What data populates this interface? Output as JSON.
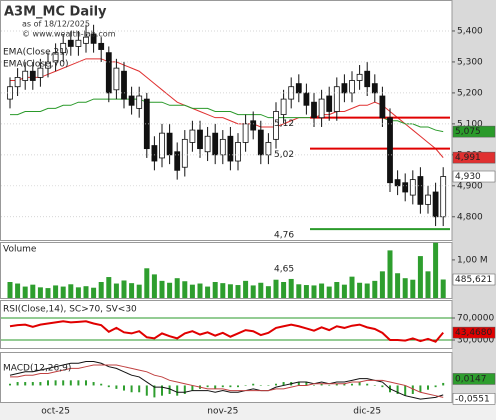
{
  "chart_data": [
    {
      "type": "candlestick",
      "title": "A3M_MC Daily",
      "subtitle": "as of 18/12/2025",
      "credit": "© www.wealth-lab.com",
      "categories": [
        null,
        null,
        null,
        null,
        null,
        null,
        "oct-25",
        null,
        null,
        null,
        null,
        null,
        null,
        null,
        null,
        null,
        null,
        null,
        null,
        null,
        null,
        null,
        null,
        null,
        null,
        null,
        null,
        null,
        "nov-25",
        null,
        null,
        null,
        null,
        null,
        null,
        null,
        null,
        null,
        null,
        null,
        null,
        null,
        null,
        null,
        null,
        null,
        null,
        "dic-25",
        null,
        null,
        null,
        null,
        null,
        null,
        null,
        null,
        null,
        null
      ],
      "open": [
        5.18,
        5.22,
        5.24,
        5.27,
        5.25,
        5.28,
        5.3,
        5.33,
        5.37,
        5.35,
        5.36,
        5.39,
        5.36,
        5.33,
        5.21,
        5.27,
        5.19,
        5.15,
        5.18,
        5.03,
        4.99,
        5.07,
        5.01,
        4.96,
        5.04,
        5.08,
        5.01,
        5.07,
        5.0,
        5.06,
        4.98,
        5.04,
        5.11,
        5.08,
        5.0,
        5.05,
        5.13,
        5.18,
        5.23,
        5.2,
        5.17,
        5.12,
        5.19,
        5.14,
        5.23,
        5.2,
        5.24,
        5.27,
        5.23,
        5.19,
        5.12,
        4.92,
        4.91,
        4.87,
        4.93,
        4.84,
        4.88,
        4.8
      ],
      "high": [
        5.25,
        5.28,
        5.3,
        5.3,
        5.31,
        5.33,
        5.36,
        5.39,
        5.4,
        5.4,
        5.42,
        5.42,
        5.38,
        5.35,
        5.31,
        5.3,
        5.22,
        5.22,
        5.2,
        5.06,
        5.1,
        5.1,
        5.04,
        5.08,
        5.11,
        5.11,
        5.09,
        5.1,
        5.08,
        5.09,
        5.07,
        5.13,
        5.14,
        5.11,
        5.07,
        5.17,
        5.21,
        5.25,
        5.26,
        5.23,
        5.2,
        5.21,
        5.22,
        5.25,
        5.26,
        5.27,
        5.29,
        5.3,
        5.26,
        5.22,
        5.15,
        4.95,
        4.94,
        4.95,
        4.96,
        4.9,
        4.91,
        4.96
      ],
      "low": [
        5.15,
        5.19,
        5.21,
        5.21,
        5.22,
        5.25,
        5.27,
        5.3,
        5.32,
        5.32,
        5.33,
        5.33,
        5.3,
        5.17,
        5.18,
        5.15,
        5.13,
        5.12,
        4.99,
        4.95,
        4.96,
        4.97,
        4.92,
        4.93,
        5.01,
        4.99,
        4.98,
        4.97,
        4.97,
        4.95,
        4.95,
        5.01,
        5.05,
        4.97,
        4.97,
        5.02,
        5.1,
        5.15,
        5.17,
        5.13,
        5.09,
        5.09,
        5.11,
        5.11,
        5.17,
        5.17,
        5.21,
        5.19,
        5.17,
        5.09,
        4.88,
        4.87,
        4.85,
        4.84,
        4.81,
        4.81,
        4.77,
        4.77
      ],
      "close": [
        5.22,
        5.25,
        5.27,
        5.24,
        5.28,
        5.3,
        5.33,
        5.36,
        5.35,
        5.37,
        5.38,
        5.36,
        5.34,
        5.2,
        5.28,
        5.18,
        5.16,
        5.19,
        5.02,
        4.98,
        5.07,
        5.0,
        4.95,
        5.05,
        5.08,
        5.02,
        5.06,
        5.0,
        5.05,
        4.98,
        5.04,
        5.1,
        5.08,
        5.0,
        5.04,
        5.14,
        5.18,
        5.22,
        5.2,
        5.16,
        5.12,
        5.18,
        5.14,
        5.22,
        5.2,
        5.24,
        5.26,
        5.22,
        5.2,
        5.12,
        4.91,
        4.9,
        4.88,
        4.92,
        4.84,
        4.87,
        4.8,
        4.93
      ],
      "close_last_label": "4,930",
      "series": [
        {
          "name": "EMA(Close,21)",
          "color": "#e03030",
          "last_label": "4,991",
          "values": [
            5.24,
            5.24,
            5.25,
            5.25,
            5.25,
            5.26,
            5.27,
            5.28,
            5.29,
            5.3,
            5.31,
            5.31,
            5.31,
            5.3,
            5.3,
            5.29,
            5.28,
            5.27,
            5.25,
            5.23,
            5.21,
            5.19,
            5.17,
            5.16,
            5.15,
            5.14,
            5.13,
            5.12,
            5.12,
            5.11,
            5.1,
            5.1,
            5.1,
            5.09,
            5.09,
            5.09,
            5.1,
            5.11,
            5.12,
            5.12,
            5.12,
            5.13,
            5.13,
            5.14,
            5.14,
            5.15,
            5.16,
            5.16,
            5.17,
            5.16,
            5.14,
            5.12,
            5.1,
            5.08,
            5.06,
            5.04,
            5.02,
            4.991
          ]
        },
        {
          "name": "EMA(Close,70)",
          "color": "#2a9a2a",
          "last_label": "5,075",
          "values": [
            5.13,
            5.13,
            5.14,
            5.14,
            5.14,
            5.15,
            5.15,
            5.16,
            5.16,
            5.17,
            5.17,
            5.18,
            5.18,
            5.18,
            5.18,
            5.18,
            5.18,
            5.18,
            5.17,
            5.17,
            5.17,
            5.16,
            5.16,
            5.16,
            5.15,
            5.15,
            5.15,
            5.14,
            5.14,
            5.14,
            5.13,
            5.13,
            5.13,
            5.13,
            5.12,
            5.12,
            5.12,
            5.12,
            5.12,
            5.12,
            5.12,
            5.12,
            5.12,
            5.12,
            5.12,
            5.12,
            5.12,
            5.12,
            5.12,
            5.12,
            5.11,
            5.11,
            5.1,
            5.1,
            5.09,
            5.09,
            5.08,
            5.075
          ]
        }
      ],
      "levels": [
        {
          "value": 5.12,
          "label": "5,12",
          "color": "#e00000"
        },
        {
          "value": 5.02,
          "label": "5,02",
          "color": "#e00000"
        },
        {
          "value": 4.76,
          "label": "4,76",
          "color": "#2a9a2a"
        },
        {
          "value": 4.65,
          "label": "4,65",
          "color": "#2a9a2a"
        }
      ],
      "ylim": [
        4.725,
        5.5
      ],
      "yticks": [
        {
          "value": 5.4,
          "label": "5,400"
        },
        {
          "value": 5.3,
          "label": "5,300"
        },
        {
          "value": 5.2,
          "label": "5,200"
        },
        {
          "value": 5.1,
          "label": "5,100"
        },
        {
          "value": 5.0,
          "label": "5,000"
        },
        {
          "value": 4.9,
          "label": "4,900"
        },
        {
          "value": 4.8,
          "label": "4,800"
        }
      ],
      "grid": true
    },
    {
      "type": "bar",
      "title": "Volume",
      "color": "#2e9e2e",
      "last_label": "485,621",
      "values": [
        420000,
        380000,
        300000,
        350000,
        280000,
        260000,
        330000,
        300000,
        360000,
        280000,
        310000,
        270000,
        420000,
        550000,
        380000,
        460000,
        390000,
        350000,
        780000,
        620000,
        450000,
        400000,
        520000,
        440000,
        350000,
        380000,
        300000,
        420000,
        390000,
        360000,
        340000,
        450000,
        330000,
        400000,
        310000,
        480000,
        420000,
        500000,
        360000,
        340000,
        330000,
        380000,
        300000,
        420000,
        350000,
        560000,
        400000,
        380000,
        450000,
        700000,
        1250000,
        650000,
        520000,
        480000,
        1100000,
        700000,
        1450000,
        485621
      ],
      "ylim": [
        0,
        1470000
      ],
      "yticks": [
        {
          "value": 1000000,
          "label": "1,00 M"
        }
      ]
    },
    {
      "type": "line",
      "title": "RSI(Close,14), SC>70, SV<30",
      "color": "#e00000",
      "tick_color": "#2a9a2a",
      "last_label": "43,4680",
      "values": [
        55,
        57,
        58,
        54,
        58,
        60,
        62,
        64,
        62,
        63,
        64,
        60,
        57,
        45,
        52,
        44,
        42,
        46,
        35,
        33,
        42,
        37,
        33,
        42,
        46,
        40,
        44,
        38,
        43,
        36,
        42,
        48,
        46,
        39,
        43,
        52,
        55,
        58,
        55,
        51,
        47,
        53,
        48,
        55,
        52,
        56,
        58,
        53,
        50,
        43,
        30,
        30,
        29,
        33,
        28,
        32,
        27,
        43.468
      ],
      "ylim": [
        15.5,
        102.7
      ],
      "yticks": [
        {
          "value": 70,
          "label": "70,0000"
        },
        {
          "value": 30,
          "label": "30,0000"
        }
      ]
    },
    {
      "type": "macd",
      "title": "MACD(12,26,9)",
      "series": [
        {
          "color": "#111111",
          "last_label": "-0,0551",
          "values": [
            0.06,
            0.07,
            0.08,
            0.08,
            0.09,
            0.1,
            0.11,
            0.12,
            0.13,
            0.13,
            0.14,
            0.14,
            0.13,
            0.11,
            0.1,
            0.08,
            0.06,
            0.05,
            0.02,
            -0.01,
            -0.01,
            -0.02,
            -0.04,
            -0.04,
            -0.03,
            -0.03,
            -0.03,
            -0.04,
            -0.03,
            -0.04,
            -0.04,
            -0.03,
            -0.02,
            -0.03,
            -0.03,
            -0.01,
            0.0,
            0.01,
            0.02,
            0.02,
            0.01,
            0.02,
            0.01,
            0.02,
            0.02,
            0.03,
            0.04,
            0.04,
            0.03,
            0.02,
            -0.02,
            -0.04,
            -0.06,
            -0.07,
            -0.08,
            -0.075,
            -0.07,
            -0.0551
          ]
        },
        {
          "color": "#c04040",
          "values": [
            0.05,
            0.05,
            0.06,
            0.06,
            0.07,
            0.07,
            0.08,
            0.09,
            0.1,
            0.1,
            0.11,
            0.12,
            0.12,
            0.12,
            0.12,
            0.11,
            0.1,
            0.09,
            0.08,
            0.06,
            0.05,
            0.03,
            0.02,
            0.01,
            0.0,
            -0.01,
            -0.02,
            -0.02,
            -0.02,
            -0.03,
            -0.03,
            -0.03,
            -0.03,
            -0.03,
            -0.03,
            -0.02,
            -0.02,
            -0.01,
            0.0,
            0.0,
            0.01,
            0.01,
            0.01,
            0.01,
            0.01,
            0.02,
            0.02,
            0.03,
            0.03,
            0.03,
            0.02,
            0.01,
            0.0,
            -0.02,
            -0.04,
            -0.05,
            -0.06,
            -0.0698
          ]
        }
      ],
      "histogram": {
        "color": "#2e9e2e",
        "last_label": "0,0147",
        "values": [
          0.01,
          0.02,
          0.02,
          0.02,
          0.02,
          0.03,
          0.03,
          0.03,
          0.03,
          0.03,
          0.03,
          0.02,
          0.01,
          -0.01,
          -0.02,
          -0.03,
          -0.04,
          -0.04,
          -0.06,
          -0.07,
          -0.06,
          -0.05,
          -0.06,
          -0.05,
          -0.03,
          -0.02,
          -0.01,
          -0.02,
          -0.01,
          -0.01,
          -0.01,
          0,
          0.01,
          0,
          0,
          0.01,
          0.02,
          0.02,
          0.02,
          0.02,
          0,
          0.01,
          0,
          0.01,
          0.01,
          0.01,
          0.02,
          0.01,
          0,
          -0.01,
          -0.04,
          -0.05,
          -0.06,
          -0.05,
          -0.04,
          -0.025,
          -0.01,
          0.0147
        ]
      },
      "ylim": [
        -0.097,
        0.196
      ]
    }
  ]
}
